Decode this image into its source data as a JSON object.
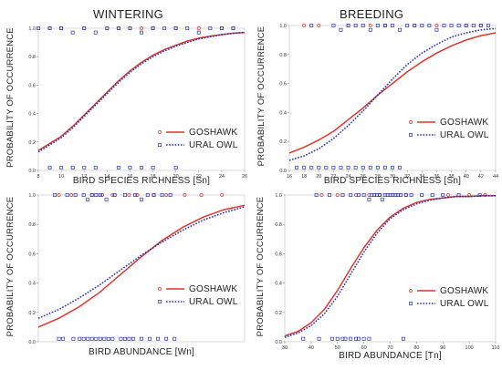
{
  "columns": {
    "left": "WINTERING",
    "right": "BREEDING"
  },
  "colors": {
    "goshawk": "#e0352b",
    "ural_owl": "#2432b8",
    "frame": "#d8d8d8"
  },
  "chart_data": [
    {
      "id": "wintering-richness",
      "type": "line",
      "xlabel": "BIRD SPECIES RICHNESS [Sn]",
      "ylabel": "PROBABILITY OF OCCURRENCE",
      "xlim": [
        8,
        26
      ],
      "ylim": [
        0,
        1
      ],
      "xticks": [
        "8",
        "10",
        "12",
        "14",
        "16",
        "18",
        "20",
        "22",
        "24",
        "26"
      ],
      "yticks": [
        "0.0",
        "0.2",
        "0.4",
        "0.6",
        "0.8",
        "1.0"
      ],
      "legend": [
        "GOSHAWK",
        "URAL OWL"
      ],
      "legend_position": "lower-right",
      "series": [
        {
          "name": "GOSHAWK",
          "style": "solid",
          "x": [
            8,
            9,
            10,
            11,
            12,
            13,
            14,
            15,
            16,
            17,
            18,
            19,
            20,
            21,
            22,
            23,
            24,
            25,
            26
          ],
          "y": [
            0.14,
            0.19,
            0.24,
            0.31,
            0.39,
            0.47,
            0.55,
            0.63,
            0.7,
            0.76,
            0.81,
            0.85,
            0.88,
            0.91,
            0.93,
            0.945,
            0.955,
            0.965,
            0.97
          ]
        },
        {
          "name": "URAL OWL",
          "style": "dotted",
          "x": [
            8,
            9,
            10,
            11,
            12,
            13,
            14,
            15,
            16,
            17,
            18,
            19,
            20,
            21,
            22,
            23,
            24,
            25,
            26
          ],
          "y": [
            0.13,
            0.18,
            0.23,
            0.3,
            0.38,
            0.46,
            0.54,
            0.62,
            0.69,
            0.75,
            0.8,
            0.84,
            0.875,
            0.9,
            0.925,
            0.94,
            0.955,
            0.965,
            0.972
          ]
        }
      ],
      "observations": [
        {
          "name": "GOSHAWK",
          "marker": "circle",
          "x": [
            9,
            10,
            12,
            14,
            15,
            16,
            17,
            18,
            20,
            22,
            24,
            25
          ],
          "y": [
            1,
            1,
            1,
            1,
            1,
            1,
            1,
            1,
            1,
            1,
            1,
            1
          ]
        },
        {
          "name": "URAL OWL",
          "marker": "square",
          "x": [
            8,
            9,
            10,
            11,
            12,
            13,
            14,
            15,
            16,
            17,
            18,
            19,
            20,
            21,
            22,
            23,
            24,
            25
          ],
          "y": [
            1,
            1,
            1,
            0.97,
            1,
            0.97,
            1,
            1,
            1,
            0.97,
            1,
            1,
            1,
            1,
            0.97,
            1,
            1,
            1
          ]
        },
        {
          "name": "URAL OWL",
          "marker": "square",
          "x": [
            9,
            10,
            11,
            12,
            13,
            15,
            16,
            17,
            18,
            20
          ],
          "y": [
            0.02,
            0.02,
            0.02,
            0.02,
            0.02,
            0.02,
            0.02,
            0.02,
            0.02,
            0.02
          ]
        }
      ]
    },
    {
      "id": "breeding-richness",
      "type": "line",
      "xlabel": "BIRD SPECIES RICHNESS [Sn]",
      "ylabel": "PROBABILITY OF OCCURRENCE",
      "xlim": [
        16,
        44
      ],
      "ylim": [
        0,
        1
      ],
      "xticks": [
        "16",
        "18",
        "20",
        "22",
        "24",
        "26",
        "28",
        "30",
        "32",
        "34",
        "36",
        "38",
        "40",
        "42",
        "44"
      ],
      "yticks": [
        "0.0",
        "0.2",
        "0.4",
        "0.6",
        "0.8",
        "1.0"
      ],
      "legend": [
        "GOSHAWK",
        "URAL OWL"
      ],
      "legend_position": "lower-right",
      "series": [
        {
          "name": "GOSHAWK",
          "style": "solid",
          "x": [
            16,
            18,
            20,
            22,
            24,
            26,
            28,
            30,
            32,
            34,
            36,
            38,
            40,
            42,
            44
          ],
          "y": [
            0.12,
            0.16,
            0.21,
            0.27,
            0.35,
            0.43,
            0.52,
            0.6,
            0.68,
            0.75,
            0.81,
            0.86,
            0.9,
            0.93,
            0.95
          ]
        },
        {
          "name": "URAL OWL",
          "style": "dotted",
          "x": [
            16,
            18,
            20,
            22,
            24,
            26,
            28,
            30,
            32,
            34,
            36,
            38,
            40,
            42,
            44
          ],
          "y": [
            0.07,
            0.1,
            0.15,
            0.22,
            0.31,
            0.41,
            0.52,
            0.63,
            0.73,
            0.81,
            0.87,
            0.92,
            0.95,
            0.97,
            0.98
          ]
        }
      ],
      "observations": [
        {
          "name": "GOSHAWK",
          "marker": "circle",
          "x": [
            18,
            20,
            24,
            27,
            29,
            33,
            36,
            40,
            42
          ],
          "y": [
            1,
            1,
            1,
            1,
            1,
            1,
            1,
            1,
            1
          ]
        },
        {
          "name": "URAL OWL",
          "marker": "square",
          "x": [
            19,
            22,
            23,
            24,
            25,
            26,
            27,
            28,
            29,
            30,
            31,
            32,
            33,
            34,
            35,
            36,
            37,
            38,
            39,
            40,
            41,
            42,
            43
          ],
          "y": [
            1,
            1,
            0.97,
            1,
            1,
            1,
            0.97,
            1,
            1,
            1,
            0.97,
            1,
            1,
            1,
            1,
            0.97,
            1,
            1,
            1,
            1,
            1,
            1,
            1
          ]
        },
        {
          "name": "URAL OWL",
          "marker": "square",
          "x": [
            17,
            18,
            19,
            20,
            21,
            22,
            23,
            24,
            25,
            26,
            27,
            28,
            29,
            30,
            31
          ],
          "y": [
            0.02,
            0.02,
            0.02,
            0.02,
            0.02,
            0.02,
            0.02,
            0.02,
            0.02,
            0.02,
            0.02,
            0.02,
            0.02,
            0.02,
            0.02
          ]
        }
      ]
    },
    {
      "id": "wintering-abundance",
      "type": "line",
      "xlabel": "BIRD ABUNDANCE  [Wn]",
      "ylabel": "PROBABILITY OF OCCURRENCE",
      "xlim": [
        0,
        100
      ],
      "ylim": [
        0,
        1
      ],
      "xticks": [],
      "yticks": [
        "0.0",
        "0.2",
        "0.4",
        "0.6",
        "0.8",
        "1.0"
      ],
      "legend": [
        "GOSHAWK",
        "URAL OWL"
      ],
      "legend_position": "lower-right",
      "series": [
        {
          "name": "GOSHAWK",
          "style": "solid",
          "x": [
            0,
            10,
            20,
            30,
            40,
            50,
            60,
            70,
            80,
            90,
            100
          ],
          "y": [
            0.1,
            0.16,
            0.24,
            0.34,
            0.46,
            0.58,
            0.69,
            0.78,
            0.85,
            0.9,
            0.93
          ]
        },
        {
          "name": "URAL OWL",
          "style": "dotted",
          "x": [
            0,
            10,
            20,
            30,
            40,
            50,
            60,
            70,
            80,
            90,
            100
          ],
          "y": [
            0.16,
            0.22,
            0.3,
            0.39,
            0.49,
            0.59,
            0.68,
            0.76,
            0.83,
            0.88,
            0.92
          ]
        }
      ],
      "observations": [
        {
          "name": "GOSHAWK",
          "marker": "circle",
          "x": [
            10,
            16,
            26,
            31,
            36,
            44,
            48,
            56,
            62,
            71,
            79,
            89
          ],
          "y": [
            1,
            1,
            1,
            1,
            1,
            1,
            1,
            1,
            1,
            1,
            1,
            1
          ]
        },
        {
          "name": "URAL OWL",
          "marker": "square",
          "x": [
            8,
            14,
            18,
            22,
            24,
            26,
            28,
            30,
            33,
            37,
            42,
            47,
            50,
            53,
            56,
            60,
            64
          ],
          "y": [
            1,
            1,
            1,
            1,
            0.97,
            1,
            1,
            1,
            0.97,
            1,
            1,
            1,
            0.97,
            1,
            1,
            1,
            1
          ]
        },
        {
          "name": "URAL OWL",
          "marker": "square",
          "x": [
            10,
            12,
            17,
            20,
            22,
            24,
            26,
            28,
            30,
            32,
            34,
            36,
            40,
            42,
            44,
            46,
            50,
            54,
            58,
            62,
            66
          ],
          "y": [
            0.02,
            0.02,
            0.02,
            0.02,
            0.02,
            0.02,
            0.02,
            0.02,
            0.02,
            0.02,
            0.02,
            0.02,
            0.02,
            0.02,
            0.02,
            0.02,
            0.02,
            0.02,
            0.02,
            0.02,
            0.02
          ]
        }
      ]
    },
    {
      "id": "breeding-abundance",
      "type": "line",
      "xlabel": "BIRD ABUNDANCE  [Tn]",
      "ylabel": "PROBABILITY OF OCCURRENCE",
      "xlim": [
        30,
        110
      ],
      "ylim": [
        0,
        1
      ],
      "xticks": [
        "30",
        "40",
        "50",
        "60",
        "70",
        "80",
        "90",
        "100",
        "110"
      ],
      "yticks": [
        "0.0",
        "0.2",
        "0.4",
        "0.6",
        "0.8",
        "1.0"
      ],
      "legend": [
        "GOSHAWK",
        "URAL OWL"
      ],
      "legend_position": "lower-right",
      "series": [
        {
          "name": "GOSHAWK",
          "style": "solid",
          "x": [
            30,
            35,
            40,
            45,
            50,
            55,
            60,
            65,
            70,
            75,
            80,
            85,
            90,
            95,
            100,
            105,
            110
          ],
          "y": [
            0.04,
            0.07,
            0.13,
            0.22,
            0.35,
            0.5,
            0.64,
            0.76,
            0.85,
            0.91,
            0.95,
            0.97,
            0.98,
            0.99,
            0.99,
            0.995,
            0.995
          ]
        },
        {
          "name": "URAL OWL",
          "style": "dotted",
          "x": [
            30,
            35,
            40,
            45,
            50,
            55,
            60,
            65,
            70,
            75,
            80,
            85,
            90,
            95,
            100,
            105,
            110
          ],
          "y": [
            0.03,
            0.06,
            0.11,
            0.19,
            0.31,
            0.46,
            0.61,
            0.74,
            0.84,
            0.9,
            0.94,
            0.965,
            0.98,
            0.99,
            0.99,
            0.995,
            0.995
          ]
        }
      ],
      "observations": [
        {
          "name": "GOSHAWK",
          "marker": "circle",
          "x": [
            44,
            50,
            57,
            62,
            66,
            76,
            92,
            100,
            106
          ],
          "y": [
            1,
            1,
            1,
            1,
            1,
            1,
            1,
            1,
            1
          ]
        },
        {
          "name": "URAL OWL",
          "marker": "square",
          "x": [
            42,
            47,
            52,
            55,
            58,
            60,
            62,
            63,
            64,
            65,
            66,
            67,
            68,
            69,
            70,
            71,
            72,
            73,
            74,
            76,
            78,
            82,
            86,
            90,
            96,
            104
          ],
          "y": [
            1,
            1,
            1,
            1,
            1,
            1,
            0.97,
            1,
            1,
            1,
            1,
            0.97,
            1,
            1,
            1,
            1,
            1,
            1,
            1,
            1,
            1,
            1,
            1,
            1,
            1,
            1
          ]
        },
        {
          "name": "URAL OWL",
          "marker": "square",
          "x": [
            37,
            43,
            48,
            50,
            52,
            53,
            55,
            57,
            58,
            60,
            62,
            75
          ],
          "y": [
            0.02,
            0.02,
            0.02,
            0.02,
            0.02,
            0.02,
            0.02,
            0.02,
            0.02,
            0.02,
            0.02,
            0.02
          ]
        }
      ]
    }
  ]
}
